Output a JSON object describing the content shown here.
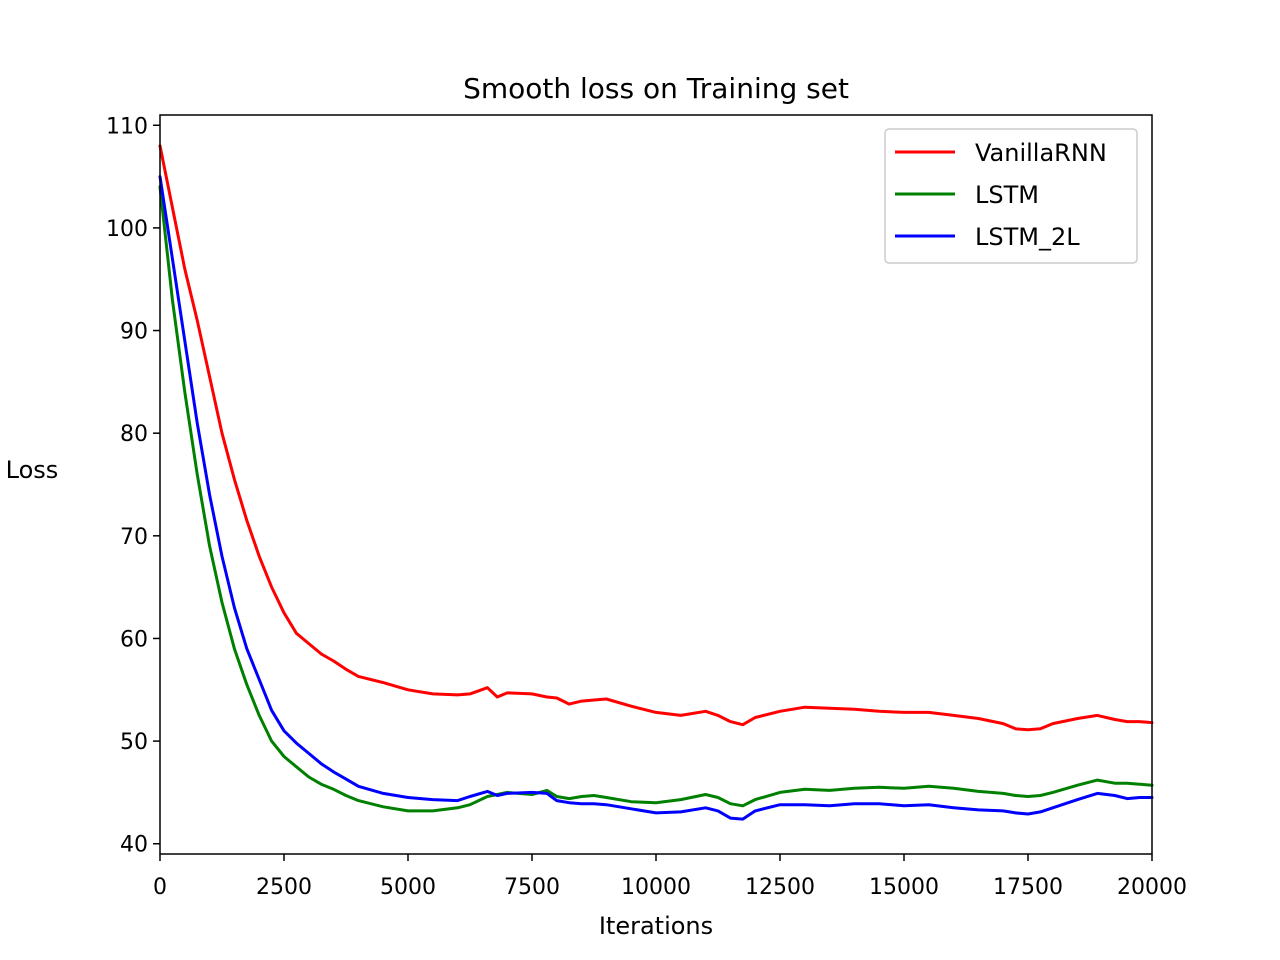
{
  "chart_data": {
    "type": "line",
    "title": "Smooth loss on Training set",
    "xlabel": "Iterations",
    "ylabel": "Loss",
    "xlim": [
      0,
      20000
    ],
    "ylim": [
      39,
      111
    ],
    "xticks": [
      0,
      2500,
      5000,
      7500,
      10000,
      12500,
      15000,
      17500,
      20000
    ],
    "yticks": [
      40,
      50,
      60,
      70,
      80,
      90,
      100,
      110
    ],
    "grid": false,
    "legend_position": "top-right",
    "x": [
      0,
      250,
      500,
      750,
      1000,
      1250,
      1500,
      1750,
      2000,
      2250,
      2500,
      2750,
      3000,
      3250,
      3500,
      3750,
      4000,
      4500,
      5000,
      5500,
      6000,
      6250,
      6600,
      6800,
      7000,
      7500,
      7800,
      8000,
      8250,
      8500,
      8750,
      9000,
      9500,
      10000,
      10500,
      11000,
      11250,
      11500,
      11750,
      12000,
      12500,
      13000,
      13500,
      14000,
      14500,
      15000,
      15500,
      16000,
      16500,
      17000,
      17250,
      17500,
      17750,
      18000,
      18500,
      18900,
      19250,
      19500,
      19750,
      20000
    ],
    "series": [
      {
        "name": "VanillaRNN",
        "color": "#ff0000",
        "values": [
          108,
          102,
          96,
          91,
          85.5,
          80,
          75.5,
          71.5,
          68,
          65,
          62.5,
          60.5,
          59.5,
          58.5,
          57.8,
          57,
          56.3,
          55.7,
          55,
          54.6,
          54.5,
          54.6,
          55.2,
          54.3,
          54.7,
          54.6,
          54.3,
          54.2,
          53.6,
          53.9,
          54,
          54.1,
          53.4,
          52.8,
          52.5,
          52.9,
          52.5,
          51.9,
          51.6,
          52.3,
          52.9,
          53.3,
          53.2,
          53.1,
          52.9,
          52.8,
          52.8,
          52.5,
          52.2,
          51.7,
          51.2,
          51.1,
          51.2,
          51.7,
          52.2,
          52.5,
          52.1,
          51.9,
          51.9,
          51.8
        ]
      },
      {
        "name": "LSTM",
        "color": "#008000",
        "values": [
          104,
          93,
          84,
          76,
          69,
          63.5,
          59,
          55.5,
          52.5,
          50,
          48.5,
          47.5,
          46.5,
          45.8,
          45.3,
          44.7,
          44.2,
          43.6,
          43.2,
          43.2,
          43.5,
          43.8,
          44.6,
          44.8,
          45,
          44.8,
          45.2,
          44.6,
          44.4,
          44.6,
          44.7,
          44.5,
          44.1,
          44,
          44.3,
          44.8,
          44.5,
          43.9,
          43.7,
          44.3,
          45,
          45.3,
          45.2,
          45.4,
          45.5,
          45.4,
          45.6,
          45.4,
          45.1,
          44.9,
          44.7,
          44.6,
          44.7,
          45,
          45.7,
          46.2,
          45.9,
          45.9,
          45.8,
          45.7
        ]
      },
      {
        "name": "LSTM_2L",
        "color": "#0000ff",
        "values": [
          105,
          97,
          89,
          81,
          74,
          68,
          63,
          59,
          56,
          53,
          51,
          49.8,
          48.8,
          47.8,
          47,
          46.3,
          45.6,
          44.9,
          44.5,
          44.3,
          44.2,
          44.6,
          45.1,
          44.7,
          44.9,
          45,
          44.9,
          44.2,
          44,
          43.9,
          43.9,
          43.8,
          43.4,
          43,
          43.1,
          43.5,
          43.2,
          42.5,
          42.4,
          43.2,
          43.8,
          43.8,
          43.7,
          43.9,
          43.9,
          43.7,
          43.8,
          43.5,
          43.3,
          43.2,
          43,
          42.9,
          43.1,
          43.5,
          44.3,
          44.9,
          44.7,
          44.4,
          44.5,
          44.5
        ]
      }
    ]
  }
}
